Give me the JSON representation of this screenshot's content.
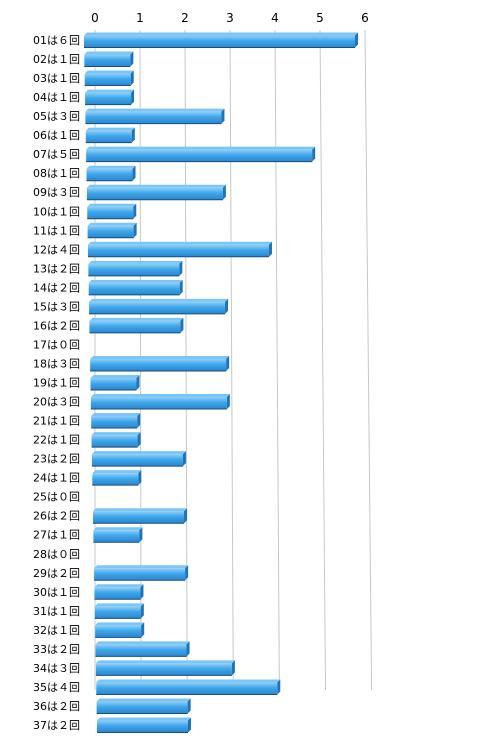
{
  "chart_data": {
    "type": "bar",
    "orientation": "horizontal",
    "categories": [
      "01は６回",
      "02は１回",
      "03は１回",
      "04は１回",
      "05は３回",
      "06は１回",
      "07は５回",
      "08は１回",
      "09は３回",
      "10は１回",
      "11は１回",
      "12は４回",
      "13は２回",
      "14は２回",
      "15は３回",
      "16は２回",
      "17は０回",
      "18は３回",
      "19は１回",
      "20は３回",
      "21は１回",
      "22は１回",
      "23は２回",
      "24は１回",
      "25は０回",
      "26は２回",
      "27は１回",
      "28は０回",
      "29は２回",
      "30は１回",
      "31は１回",
      "32は１回",
      "33は２回",
      "34は３回",
      "35は４回",
      "36は２回",
      "37は２回"
    ],
    "values": [
      6,
      1,
      1,
      1,
      3,
      1,
      5,
      1,
      3,
      1,
      1,
      4,
      2,
      2,
      3,
      2,
      0,
      3,
      1,
      3,
      1,
      1,
      2,
      1,
      0,
      2,
      1,
      0,
      2,
      1,
      1,
      1,
      2,
      3,
      4,
      2,
      2
    ],
    "xlim": [
      0,
      6
    ],
    "x_ticks": [
      "0",
      "1",
      "2",
      "3",
      "4",
      "5",
      "6"
    ],
    "grid": true,
    "title": "",
    "xlabel": "",
    "ylabel": ""
  },
  "colors": {
    "bar_top": "#7cc6f7",
    "bar_face": "#3aa0e6",
    "bar_bottom": "#1f74b8",
    "bar_dark": "#1a4f78",
    "grid": "#c8c8c8",
    "text": "#000000"
  }
}
